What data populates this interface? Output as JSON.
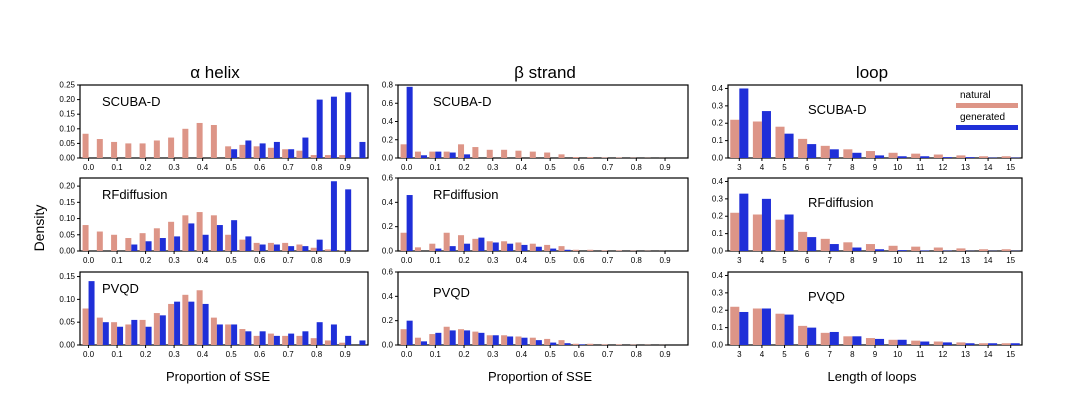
{
  "figure": {
    "ylabel": "Density",
    "colors": {
      "natural": "#dd9587",
      "generated": "#1f2fd8"
    },
    "legend": {
      "natural": "natural",
      "generated": "generated",
      "placement": "top-right"
    },
    "columns": [
      {
        "title": "α helix",
        "xlabel": "Proportion of SSE"
      },
      {
        "title": "β strand",
        "xlabel": "Proportion of SSE"
      },
      {
        "title": "loop",
        "xlabel": "Length of loops"
      }
    ]
  },
  "chart_data": [
    {
      "type": "bar",
      "col": 0,
      "row": 0,
      "label": "SCUBA-D",
      "x": [
        0.0,
        0.05,
        0.1,
        0.15,
        0.2,
        0.25,
        0.3,
        0.35,
        0.4,
        0.45,
        0.5,
        0.55,
        0.6,
        0.65,
        0.7,
        0.75,
        0.8,
        0.85,
        0.9,
        0.95
      ],
      "xticks": [
        0.0,
        0.1,
        0.2,
        0.3,
        0.4,
        0.5,
        0.6,
        0.7,
        0.8,
        0.9
      ],
      "yticks": [
        0.0,
        0.05,
        0.1,
        0.15,
        0.2,
        0.25
      ],
      "ylim": [
        0,
        0.25
      ],
      "natural": [
        0.083,
        0.065,
        0.055,
        0.05,
        0.05,
        0.06,
        0.07,
        0.1,
        0.12,
        0.113,
        0.04,
        0.045,
        0.04,
        0.035,
        0.03,
        0.025,
        0.01,
        0.01,
        0.01,
        0
      ],
      "generated": [
        0,
        0,
        0,
        0,
        0,
        0,
        0,
        0,
        0,
        0,
        0.03,
        0.06,
        0.05,
        0.055,
        0.03,
        0.07,
        0.2,
        0.21,
        0.225,
        0.055
      ]
    },
    {
      "type": "bar",
      "col": 0,
      "row": 1,
      "label": "RFdiffusion",
      "x": [
        0.0,
        0.05,
        0.1,
        0.15,
        0.2,
        0.25,
        0.3,
        0.35,
        0.4,
        0.45,
        0.5,
        0.55,
        0.6,
        0.65,
        0.7,
        0.75,
        0.8,
        0.85,
        0.9,
        0.95
      ],
      "xticks": [
        0.0,
        0.1,
        0.2,
        0.3,
        0.4,
        0.5,
        0.6,
        0.7,
        0.8,
        0.9
      ],
      "yticks": [
        0.0,
        0.05,
        0.1,
        0.15,
        0.2
      ],
      "ylim": [
        0,
        0.225
      ],
      "natural": [
        0.08,
        0.06,
        0.05,
        0.04,
        0.055,
        0.07,
        0.09,
        0.11,
        0.12,
        0.11,
        0.05,
        0.035,
        0.025,
        0.025,
        0.025,
        0.02,
        0.01,
        0.005,
        0.002,
        0
      ],
      "generated": [
        0,
        0,
        0,
        0.02,
        0.03,
        0.04,
        0.045,
        0.085,
        0.05,
        0.08,
        0.095,
        0.045,
        0.02,
        0.02,
        0.015,
        0.015,
        0.035,
        0.215,
        0.19,
        0
      ]
    },
    {
      "type": "bar",
      "col": 0,
      "row": 2,
      "label": "PVQD",
      "x": [
        0.0,
        0.05,
        0.1,
        0.15,
        0.2,
        0.25,
        0.3,
        0.35,
        0.4,
        0.45,
        0.5,
        0.55,
        0.6,
        0.65,
        0.7,
        0.75,
        0.8,
        0.85,
        0.9,
        0.95
      ],
      "xticks": [
        0.0,
        0.1,
        0.2,
        0.3,
        0.4,
        0.5,
        0.6,
        0.7,
        0.8,
        0.9
      ],
      "yticks": [
        0.0,
        0.05,
        0.1,
        0.15
      ],
      "ylim": [
        0,
        0.16
      ],
      "natural": [
        0.08,
        0.06,
        0.05,
        0.045,
        0.055,
        0.07,
        0.09,
        0.11,
        0.12,
        0.06,
        0.045,
        0.035,
        0.02,
        0.025,
        0.02,
        0.02,
        0.015,
        0.01,
        0.005,
        0
      ],
      "generated": [
        0.14,
        0.05,
        0.04,
        0.055,
        0.04,
        0.065,
        0.095,
        0.095,
        0.09,
        0.045,
        0.045,
        0.03,
        0.03,
        0.02,
        0.025,
        0.03,
        0.05,
        0.045,
        0.02,
        0.01
      ]
    },
    {
      "type": "bar",
      "col": 1,
      "row": 0,
      "label": "SCUBA-D",
      "x": [
        0.0,
        0.05,
        0.1,
        0.15,
        0.2,
        0.25,
        0.3,
        0.35,
        0.4,
        0.45,
        0.5,
        0.55,
        0.6,
        0.65,
        0.7,
        0.75,
        0.8,
        0.85,
        0.9,
        0.95
      ],
      "xticks": [
        0.0,
        0.1,
        0.2,
        0.3,
        0.4,
        0.5,
        0.6,
        0.7,
        0.8,
        0.9
      ],
      "yticks": [
        0.0,
        0.2,
        0.4,
        0.6,
        0.8
      ],
      "ylim": [
        0,
        0.8
      ],
      "natural": [
        0.15,
        0.07,
        0.07,
        0.07,
        0.15,
        0.12,
        0.09,
        0.09,
        0.08,
        0.07,
        0.06,
        0.04,
        0.01,
        0.01,
        0.005,
        0.005,
        0.003,
        0.002,
        0.001,
        0
      ],
      "generated": [
        0.78,
        0.03,
        0.07,
        0.06,
        0.04,
        0,
        0,
        0,
        0,
        0,
        0,
        0,
        0,
        0,
        0,
        0,
        0,
        0,
        0,
        0
      ]
    },
    {
      "type": "bar",
      "col": 1,
      "row": 1,
      "label": "RFdiffusion",
      "x": [
        0.0,
        0.05,
        0.1,
        0.15,
        0.2,
        0.25,
        0.3,
        0.35,
        0.4,
        0.45,
        0.5,
        0.55,
        0.6,
        0.65,
        0.7,
        0.75,
        0.8,
        0.85,
        0.9,
        0.95
      ],
      "xticks": [
        0.0,
        0.1,
        0.2,
        0.3,
        0.4,
        0.5,
        0.6,
        0.7,
        0.8,
        0.9
      ],
      "yticks": [
        0.0,
        0.2,
        0.4,
        0.6
      ],
      "ylim": [
        0,
        0.6
      ],
      "natural": [
        0.15,
        0.03,
        0.06,
        0.15,
        0.13,
        0.1,
        0.08,
        0.08,
        0.07,
        0.06,
        0.05,
        0.04,
        0.01,
        0.01,
        0.005,
        0.005,
        0.003,
        0.002,
        0.001,
        0
      ],
      "generated": [
        0.46,
        0,
        0.02,
        0.04,
        0.06,
        0.11,
        0.07,
        0.06,
        0.05,
        0.035,
        0.02,
        0.01,
        0,
        0,
        0,
        0,
        0,
        0,
        0,
        0
      ]
    },
    {
      "type": "bar",
      "col": 1,
      "row": 2,
      "label": "PVQD",
      "x": [
        0.0,
        0.05,
        0.1,
        0.15,
        0.2,
        0.25,
        0.3,
        0.35,
        0.4,
        0.45,
        0.5,
        0.55,
        0.6,
        0.65,
        0.7,
        0.75,
        0.8,
        0.85,
        0.9,
        0.95
      ],
      "xticks": [
        0.0,
        0.1,
        0.2,
        0.3,
        0.4,
        0.5,
        0.6,
        0.7,
        0.8,
        0.9
      ],
      "yticks": [
        0.0,
        0.2,
        0.4,
        0.6
      ],
      "ylim": [
        0,
        0.6
      ],
      "natural": [
        0.13,
        0.06,
        0.09,
        0.15,
        0.13,
        0.11,
        0.08,
        0.08,
        0.07,
        0.06,
        0.05,
        0.04,
        0.01,
        0.01,
        0.005,
        0.005,
        0.003,
        0.002,
        0.001,
        0
      ],
      "generated": [
        0.2,
        0.03,
        0.1,
        0.12,
        0.12,
        0.1,
        0.08,
        0.07,
        0.06,
        0.04,
        0.02,
        0.015,
        0.005,
        0,
        0,
        0,
        0,
        0,
        0,
        0
      ]
    },
    {
      "type": "bar",
      "col": 2,
      "row": 0,
      "label": "SCUBA-D",
      "x": [
        3,
        4,
        5,
        6,
        7,
        8,
        9,
        10,
        11,
        12,
        13,
        14,
        15
      ],
      "xticks": [
        3,
        4,
        5,
        6,
        7,
        8,
        9,
        10,
        11,
        12,
        13,
        14,
        15
      ],
      "yticks": [
        0.0,
        0.1,
        0.2,
        0.3,
        0.4
      ],
      "ylim": [
        0,
        0.42
      ],
      "natural": [
        0.22,
        0.21,
        0.18,
        0.11,
        0.07,
        0.05,
        0.04,
        0.03,
        0.025,
        0.02,
        0.015,
        0.01,
        0.01
      ],
      "generated": [
        0.4,
        0.27,
        0.14,
        0.08,
        0.05,
        0.03,
        0.015,
        0.01,
        0.01,
        0.005,
        0.005,
        0.002,
        0.002
      ]
    },
    {
      "type": "bar",
      "col": 2,
      "row": 1,
      "label": "RFdiffusion",
      "x": [
        3,
        4,
        5,
        6,
        7,
        8,
        9,
        10,
        11,
        12,
        13,
        14,
        15
      ],
      "xticks": [
        3,
        4,
        5,
        6,
        7,
        8,
        9,
        10,
        11,
        12,
        13,
        14,
        15
      ],
      "yticks": [
        0.0,
        0.1,
        0.2,
        0.3,
        0.4
      ],
      "ylim": [
        0,
        0.42
      ],
      "natural": [
        0.22,
        0.21,
        0.18,
        0.11,
        0.07,
        0.05,
        0.04,
        0.03,
        0.025,
        0.02,
        0.015,
        0.01,
        0.01
      ],
      "generated": [
        0.33,
        0.3,
        0.21,
        0.08,
        0.04,
        0.02,
        0.01,
        0.005,
        0.003,
        0.002,
        0.001,
        0.001,
        0.001
      ]
    },
    {
      "type": "bar",
      "col": 2,
      "row": 2,
      "label": "PVQD",
      "x": [
        3,
        4,
        5,
        6,
        7,
        8,
        9,
        10,
        11,
        12,
        13,
        14,
        15
      ],
      "xticks": [
        3,
        4,
        5,
        6,
        7,
        8,
        9,
        10,
        11,
        12,
        13,
        14,
        15
      ],
      "yticks": [
        0.0,
        0.1,
        0.2,
        0.3,
        0.4
      ],
      "ylim": [
        0,
        0.42
      ],
      "natural": [
        0.22,
        0.21,
        0.18,
        0.11,
        0.07,
        0.05,
        0.04,
        0.03,
        0.025,
        0.02,
        0.015,
        0.01,
        0.01
      ],
      "generated": [
        0.19,
        0.21,
        0.175,
        0.1,
        0.075,
        0.05,
        0.035,
        0.03,
        0.02,
        0.015,
        0.01,
        0.01,
        0.01
      ]
    }
  ]
}
